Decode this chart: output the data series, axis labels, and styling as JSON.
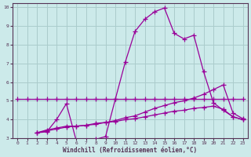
{
  "xlabel": "Windchill (Refroidissement éolien,°C)",
  "bg_color": "#cceaea",
  "grid_color": "#aacccc",
  "line_color": "#990099",
  "axis_color": "#553355",
  "xlim": [
    -0.5,
    23.5
  ],
  "ylim": [
    3,
    10.2
  ],
  "xticks": [
    0,
    1,
    2,
    3,
    4,
    5,
    6,
    7,
    8,
    9,
    10,
    11,
    12,
    13,
    14,
    15,
    16,
    17,
    18,
    19,
    20,
    21,
    22,
    23
  ],
  "yticks": [
    3,
    4,
    5,
    6,
    7,
    8,
    9,
    10
  ],
  "line1_x": [
    0,
    1,
    2,
    3,
    4,
    5,
    6,
    7,
    8,
    9,
    10,
    11,
    12,
    13,
    14,
    15,
    16,
    17,
    18,
    19,
    20,
    21,
    22,
    23
  ],
  "line1_y": [
    5.1,
    5.1,
    5.1,
    5.1,
    5.1,
    5.1,
    5.1,
    5.1,
    5.1,
    5.1,
    5.1,
    5.1,
    5.1,
    5.1,
    5.1,
    5.1,
    5.1,
    5.1,
    5.1,
    5.1,
    5.1,
    5.1,
    5.1,
    5.1
  ],
  "line2_x": [
    2,
    3,
    4,
    5,
    6,
    7,
    8,
    9,
    10,
    11,
    12,
    13,
    14,
    15,
    16,
    17,
    18,
    19,
    20,
    21,
    22,
    23
  ],
  "line2_y": [
    3.3,
    3.35,
    4.0,
    4.85,
    2.9,
    2.9,
    2.95,
    3.1,
    5.1,
    7.05,
    8.7,
    9.35,
    9.75,
    9.95,
    8.6,
    8.3,
    8.5,
    6.55,
    4.9,
    4.5,
    4.15,
    4.0
  ],
  "line3_x": [
    2,
    3,
    4,
    5,
    6,
    7,
    8,
    9,
    10,
    11,
    12,
    13,
    14,
    15,
    16,
    17,
    18,
    19,
    20,
    21,
    22,
    23
  ],
  "line3_y": [
    3.3,
    3.45,
    3.55,
    3.65,
    3.65,
    3.7,
    3.75,
    3.85,
    3.95,
    4.1,
    4.2,
    4.4,
    4.6,
    4.75,
    4.9,
    5.0,
    5.15,
    5.35,
    5.6,
    5.85,
    4.35,
    4.05
  ],
  "line4_x": [
    2,
    3,
    4,
    5,
    6,
    7,
    8,
    9,
    10,
    11,
    12,
    13,
    14,
    15,
    16,
    17,
    18,
    19,
    20,
    21,
    22,
    23
  ],
  "line4_y": [
    3.3,
    3.4,
    3.5,
    3.6,
    3.65,
    3.7,
    3.8,
    3.85,
    3.9,
    4.0,
    4.05,
    4.15,
    4.25,
    4.35,
    4.45,
    4.5,
    4.6,
    4.65,
    4.72,
    4.55,
    4.15,
    4.0
  ]
}
